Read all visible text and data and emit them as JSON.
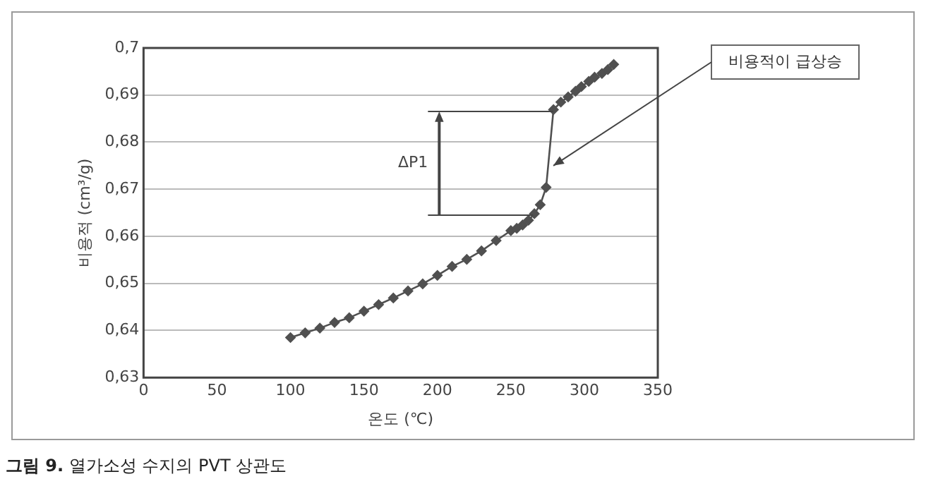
{
  "chart_data": {
    "type": "line",
    "title": "그림 9. 열가소성 수지의 PVT 상관도",
    "xlabel": "온도 (℃)",
    "ylabel": "비용적 (cm³/g)",
    "x": [
      100,
      110,
      120,
      130,
      140,
      150,
      160,
      170,
      180,
      190,
      200,
      210,
      220,
      230,
      240,
      250,
      254,
      258,
      262,
      266,
      270,
      274,
      279,
      284,
      289,
      294,
      298,
      303,
      307,
      312,
      316,
      320
    ],
    "series": [
      {
        "color": "#505050",
        "values": [
          0.6385,
          0.6395,
          0.6405,
          0.6417,
          0.6427,
          0.6441,
          0.6455,
          0.6469,
          0.6484,
          0.6499,
          0.6517,
          0.6536,
          0.6551,
          0.6569,
          0.6591,
          0.6612,
          0.6617,
          0.6624,
          0.6634,
          0.6648,
          0.6667,
          0.6704,
          0.6869,
          0.6885,
          0.6896,
          0.6908,
          0.6918,
          0.6929,
          0.6938,
          0.6946,
          0.6954,
          0.6965
        ]
      }
    ],
    "xlim": [
      0,
      350
    ],
    "xticks": [
      0,
      50,
      100,
      150,
      200,
      250,
      300,
      350
    ],
    "ylim": [
      0.63,
      0.7
    ],
    "yticks": [
      {
        "value": 0.63,
        "label": "0,63"
      },
      {
        "value": 0.64,
        "label": "0,64"
      },
      {
        "value": 0.65,
        "label": "0,65"
      },
      {
        "value": 0.66,
        "label": "0,66"
      },
      {
        "value": 0.67,
        "label": "0,67"
      },
      {
        "value": 0.68,
        "label": "0,68"
      },
      {
        "value": 0.69,
        "label": "0,69"
      },
      {
        "value": 0.7,
        "label": "0,7"
      }
    ],
    "ref_lines": [
      {
        "axis": "y",
        "value": 0.6645
      },
      {
        "axis": "y",
        "value": 0.6865
      }
    ],
    "annotations": [
      "ΔP1",
      {
        "text": "비용적이 급상승",
        "x": 277,
        "y": 0.675
      }
    ],
    "grid": "y",
    "legend": false,
    "marker": "diamond",
    "line_style": "solid"
  }
}
